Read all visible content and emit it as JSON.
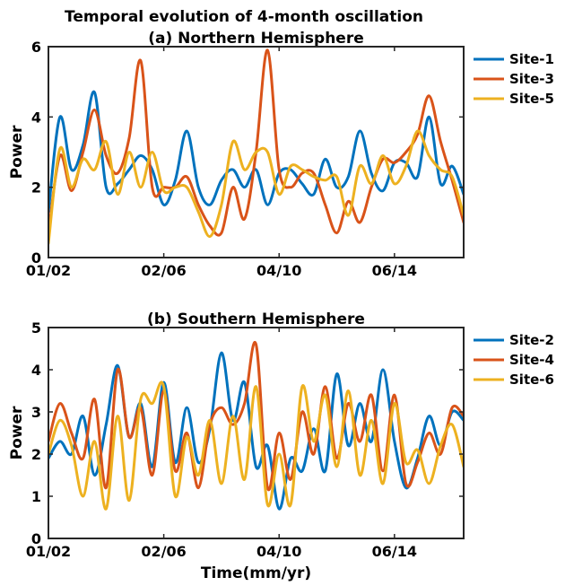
{
  "figure_title": "Temporal evolution of 4-month oscillation",
  "colors": {
    "blue": "#0072BD",
    "orange": "#D95319",
    "yellow": "#EDB120"
  },
  "chart_data": [
    {
      "type": "line",
      "title": "(a) Northern Hemisphere",
      "xlabel": "",
      "ylabel": "Power",
      "xlim": [
        0,
        360
      ],
      "ylim": [
        0,
        6
      ],
      "x_ticks": [
        0,
        100,
        200,
        300
      ],
      "x_tick_labels": [
        "01/02",
        "02/06",
        "04/10",
        "06/14"
      ],
      "y_ticks": [
        0,
        2,
        4,
        6
      ],
      "legend": "top-right outside",
      "series": [
        {
          "name": "Site-1",
          "color": "#0072BD",
          "x": [
            0,
            10,
            20,
            30,
            40,
            50,
            60,
            70,
            80,
            90,
            100,
            110,
            120,
            130,
            140,
            150,
            160,
            170,
            180,
            190,
            200,
            210,
            220,
            230,
            240,
            250,
            260,
            270,
            280,
            290,
            300,
            310,
            320,
            330,
            340,
            350,
            360
          ],
          "y": [
            1.3,
            4.0,
            2.5,
            3.2,
            4.7,
            2.0,
            2.1,
            2.5,
            2.9,
            2.5,
            1.5,
            2.2,
            3.6,
            2.0,
            1.5,
            2.2,
            2.5,
            2.0,
            2.5,
            1.5,
            2.4,
            2.5,
            2.1,
            1.8,
            2.8,
            2.0,
            2.3,
            3.6,
            2.4,
            1.9,
            2.7,
            2.7,
            2.3,
            4.0,
            2.1,
            2.6,
            1.8
          ]
        },
        {
          "name": "Site-3",
          "color": "#D95319",
          "x": [
            0,
            10,
            20,
            30,
            40,
            50,
            60,
            70,
            80,
            90,
            100,
            110,
            120,
            130,
            140,
            150,
            160,
            170,
            180,
            190,
            200,
            210,
            220,
            230,
            240,
            250,
            260,
            270,
            280,
            290,
            300,
            310,
            320,
            330,
            340,
            350,
            360
          ],
          "y": [
            0.7,
            2.9,
            1.9,
            3.0,
            4.2,
            2.9,
            2.4,
            3.4,
            5.6,
            2.0,
            2.0,
            2.0,
            2.3,
            1.5,
            0.9,
            0.7,
            2.0,
            1.1,
            3.0,
            5.9,
            2.5,
            2.0,
            2.4,
            2.4,
            1.5,
            0.7,
            1.6,
            1.0,
            2.0,
            2.8,
            2.7,
            3.0,
            3.5,
            4.6,
            3.3,
            2.2,
            1.0
          ]
        },
        {
          "name": "Site-5",
          "color": "#EDB120",
          "x": [
            0,
            10,
            20,
            30,
            40,
            50,
            60,
            70,
            80,
            90,
            100,
            110,
            120,
            130,
            140,
            150,
            160,
            170,
            180,
            190,
            200,
            210,
            220,
            230,
            240,
            250,
            260,
            270,
            280,
            290,
            300,
            310,
            320,
            330,
            340,
            350,
            360
          ],
          "y": [
            0.4,
            3.1,
            2.0,
            2.8,
            2.5,
            3.3,
            1.8,
            3.0,
            2.0,
            3.0,
            1.9,
            2.0,
            2.0,
            1.3,
            0.6,
            1.5,
            3.3,
            2.5,
            3.0,
            3.0,
            1.8,
            2.6,
            2.5,
            2.3,
            2.2,
            2.3,
            1.2,
            2.6,
            2.1,
            2.9,
            2.1,
            2.6,
            3.6,
            2.9,
            2.5,
            2.3,
            1.2
          ]
        }
      ]
    },
    {
      "type": "line",
      "title": "(b) Southern Hemisphere",
      "xlabel": "Time(mm/yr)",
      "ylabel": "Power",
      "xlim": [
        0,
        360
      ],
      "ylim": [
        0,
        5
      ],
      "x_ticks": [
        0,
        100,
        200,
        300
      ],
      "x_tick_labels": [
        "01/02",
        "02/06",
        "04/10",
        "06/14"
      ],
      "y_ticks": [
        0,
        1,
        2,
        3,
        4,
        5
      ],
      "legend": "top-right outside",
      "series": [
        {
          "name": "Site-2",
          "color": "#0072BD",
          "x": [
            0,
            10,
            20,
            30,
            40,
            50,
            60,
            70,
            80,
            90,
            100,
            110,
            120,
            130,
            140,
            150,
            160,
            170,
            180,
            190,
            200,
            210,
            220,
            230,
            240,
            250,
            260,
            270,
            280,
            290,
            300,
            310,
            320,
            330,
            340,
            350,
            360
          ],
          "y": [
            1.9,
            2.3,
            2.0,
            2.9,
            1.5,
            2.7,
            4.1,
            2.4,
            3.2,
            1.7,
            3.7,
            1.8,
            3.1,
            1.8,
            2.6,
            4.4,
            2.8,
            3.7,
            1.7,
            2.2,
            0.7,
            1.9,
            1.6,
            2.6,
            1.6,
            3.9,
            2.2,
            3.2,
            2.3,
            4.0,
            2.3,
            1.2,
            1.9,
            2.9,
            2.2,
            3.0,
            2.8
          ]
        },
        {
          "name": "Site-4",
          "color": "#D95319",
          "x": [
            0,
            10,
            20,
            30,
            40,
            50,
            60,
            70,
            80,
            90,
            100,
            110,
            120,
            130,
            140,
            150,
            160,
            170,
            180,
            190,
            200,
            210,
            220,
            230,
            240,
            250,
            260,
            270,
            280,
            290,
            300,
            310,
            320,
            330,
            340,
            350,
            360
          ],
          "y": [
            2.3,
            3.2,
            2.5,
            1.9,
            3.3,
            1.2,
            4.0,
            2.4,
            3.1,
            1.5,
            3.5,
            1.6,
            2.5,
            1.2,
            2.7,
            3.1,
            2.7,
            3.2,
            4.6,
            1.2,
            2.5,
            1.4,
            3.0,
            2.0,
            3.6,
            1.9,
            3.2,
            2.3,
            3.4,
            1.6,
            3.4,
            1.3,
            1.8,
            2.5,
            2.0,
            3.1,
            2.9
          ]
        },
        {
          "name": "Site-6",
          "color": "#EDB120",
          "x": [
            0,
            10,
            20,
            30,
            40,
            50,
            60,
            70,
            80,
            90,
            100,
            110,
            120,
            130,
            140,
            150,
            160,
            170,
            180,
            190,
            200,
            210,
            220,
            230,
            240,
            250,
            260,
            270,
            280,
            290,
            300,
            310,
            320,
            330,
            340,
            350,
            360
          ],
          "y": [
            2.0,
            2.8,
            2.2,
            1.0,
            2.3,
            0.7,
            2.9,
            0.9,
            3.3,
            3.2,
            3.6,
            1.0,
            2.4,
            1.5,
            2.8,
            1.3,
            2.9,
            1.4,
            3.6,
            0.8,
            2.0,
            0.8,
            3.6,
            2.3,
            3.4,
            1.7,
            3.5,
            1.5,
            2.8,
            1.3,
            3.2,
            1.8,
            2.1,
            1.3,
            2.2,
            2.7,
            1.7
          ]
        }
      ]
    }
  ]
}
